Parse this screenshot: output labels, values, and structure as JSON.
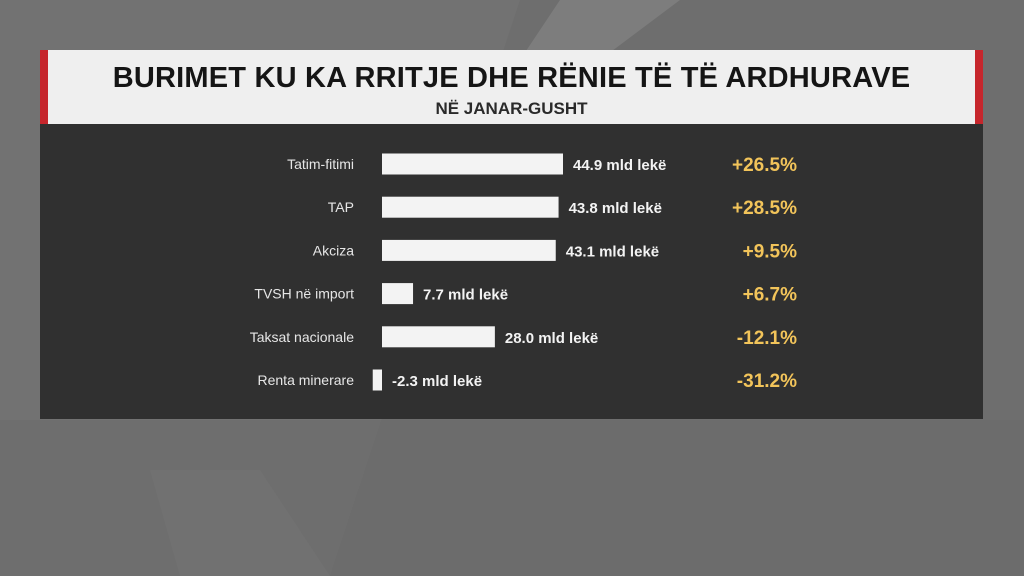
{
  "header": {
    "title": "BURIMET KU KA RRITJE DHE RËNIE TË TË ARDHURAVE",
    "subtitle": "NË JANAR-GUSHT"
  },
  "chart_data": {
    "type": "bar",
    "title": "BURIMET KU KA RRITJE DHE RËNIE TË TË ARDHURAVE",
    "subtitle": "NË JANAR-GUSHT",
    "categories": [
      "Tatim-fitimi",
      "TAP",
      "Akciza",
      "TVSH në import",
      "Taksat nacionale",
      "Renta minerare"
    ],
    "series": [
      {
        "values": [
          44.9,
          43.8,
          43.1,
          7.7,
          28.0,
          -2.3
        ]
      }
    ],
    "value_labels": [
      "44.9 mld lekë",
      "43.8 mld lekë",
      "43.1 mld lekë",
      "7.7 mld lekë",
      "28.0 mld lekë",
      "-2.3 mld lekë"
    ],
    "changes": [
      "+26.5%",
      "+28.5%",
      "+9.5%",
      "+6.7%",
      "-12.1%",
      "-31.2%"
    ],
    "orientation": "horizontal",
    "grid": false,
    "colors": {
      "bar": "#f3f3f3",
      "change": "#f2c45a",
      "label": "#e6e6e6",
      "panel": "#303030",
      "accent": "#c6262c"
    }
  }
}
